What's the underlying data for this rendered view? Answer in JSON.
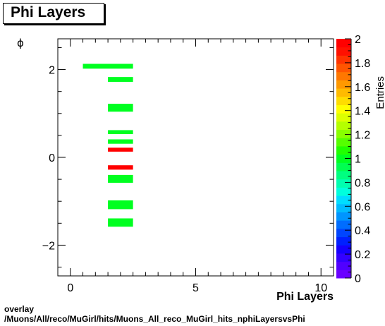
{
  "title": "Phi Layers",
  "footer": {
    "line1": "overlay",
    "line2": "/Muons/All/reco/MuGirl/hits/Muons_All_reco_MuGirl_hits_nphiLayersvsPhi"
  },
  "chart_data": {
    "type": "heatmap",
    "title": "Phi Layers",
    "xlabel": "Phi Layers",
    "ylabel": "ϕ",
    "zlabel": "Entries",
    "xlim": [
      -0.5,
      10.5
    ],
    "ylim": [
      -2.7,
      2.7
    ],
    "zlim": [
      0,
      2
    ],
    "x_ticks": [
      "0",
      "5",
      "10"
    ],
    "y_ticks": [
      "−2",
      "0",
      "2"
    ],
    "z_ticks": [
      "0",
      "0.2",
      "0.4",
      "0.6",
      "0.8",
      "1",
      "1.2",
      "1.4",
      "1.6",
      "1.8",
      "2"
    ],
    "cells": [
      {
        "x0": 0.5,
        "x1": 2.5,
        "y0": 2.02,
        "y1": 2.13,
        "z": 1
      },
      {
        "x0": 1.5,
        "x1": 2.5,
        "y0": 1.72,
        "y1": 1.83,
        "z": 1
      },
      {
        "x0": 1.5,
        "x1": 2.5,
        "y0": 1.04,
        "y1": 1.22,
        "z": 1
      },
      {
        "x0": 1.5,
        "x1": 2.5,
        "y0": 0.53,
        "y1": 0.62,
        "z": 1
      },
      {
        "x0": 1.5,
        "x1": 2.5,
        "y0": 0.31,
        "y1": 0.41,
        "z": 1
      },
      {
        "x0": 1.5,
        "x1": 2.5,
        "y0": 0.13,
        "y1": 0.22,
        "z": 2
      },
      {
        "x0": 1.5,
        "x1": 2.5,
        "y0": -0.28,
        "y1": -0.18,
        "z": 2
      },
      {
        "x0": 1.5,
        "x1": 2.5,
        "y0": -0.58,
        "y1": -0.4,
        "z": 1
      },
      {
        "x0": 1.5,
        "x1": 2.5,
        "y0": -1.18,
        "y1": -0.98,
        "z": 1
      },
      {
        "x0": 1.5,
        "x1": 2.5,
        "y0": -1.58,
        "y1": -1.39,
        "z": 1
      }
    ],
    "palette": [
      "#6a00ff",
      "#5000ff",
      "#3300ff",
      "#1500ff",
      "#0020ff",
      "#0045ff",
      "#006dff",
      "#0095ff",
      "#00bbff",
      "#00ddff",
      "#00ffdd",
      "#00ffb0",
      "#00ff80",
      "#00ff50",
      "#00ff20",
      "#20ff00",
      "#55ff00",
      "#88ff00",
      "#b5ff00",
      "#ddff00",
      "#ffff00",
      "#ffdd00",
      "#ffbb00",
      "#ff9900",
      "#ff7700",
      "#ff5500",
      "#ff3300",
      "#ff1100",
      "#ff0000"
    ],
    "grid": false
  }
}
